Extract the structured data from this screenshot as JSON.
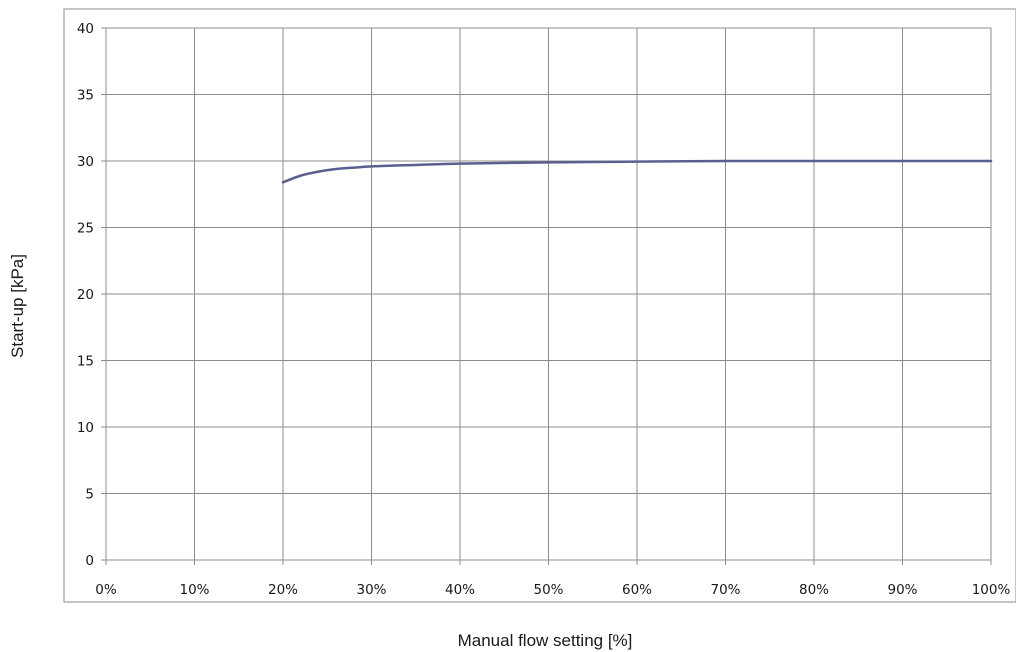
{
  "chart_data": {
    "type": "line",
    "xlabel": "Manual flow setting [%]",
    "ylabel": "Start-up [kPa]",
    "xlim": [
      0,
      100
    ],
    "ylim": [
      0,
      40
    ],
    "x_ticks": [
      0,
      10,
      20,
      30,
      40,
      50,
      60,
      70,
      80,
      90,
      100
    ],
    "x_tick_labels": [
      "0%",
      "10%",
      "20%",
      "30%",
      "40%",
      "50%",
      "60%",
      "70%",
      "80%",
      "90%",
      "100%"
    ],
    "y_ticks": [
      0,
      5,
      10,
      15,
      20,
      25,
      30,
      35,
      40
    ],
    "y_tick_labels": [
      "0",
      "5",
      "10",
      "15",
      "20",
      "25",
      "30",
      "35",
      "40"
    ],
    "grid": true,
    "legend": "none",
    "series": [
      {
        "color": "#5b5f8f",
        "x": [
          20,
          22,
          24,
          26,
          28,
          30,
          35,
          40,
          50,
          60,
          70,
          80,
          90,
          100
        ],
        "y": [
          28.4,
          28.9,
          29.2,
          29.4,
          29.5,
          29.6,
          29.7,
          29.8,
          29.9,
          29.95,
          30.0,
          30.0,
          30.0,
          30.0
        ]
      }
    ]
  }
}
